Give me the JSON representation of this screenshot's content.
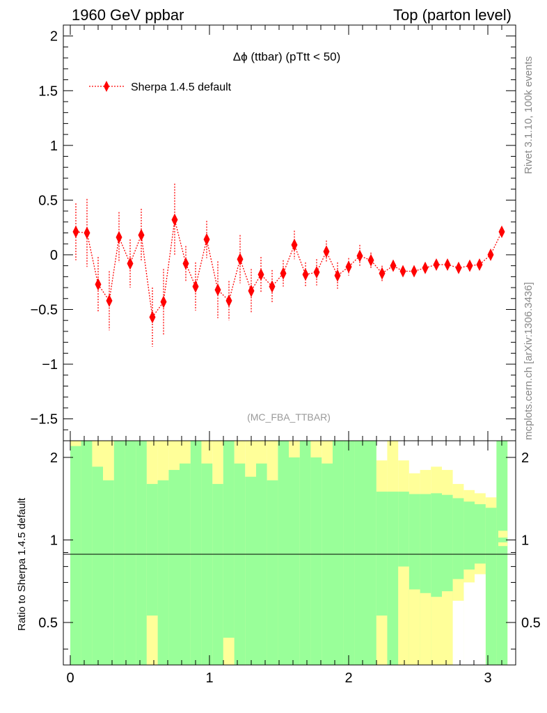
{
  "header": {
    "left": "1960 GeV ppbar",
    "right": "Top (parton level)"
  },
  "side_labels": {
    "rivet": "Rivet 3.1.10,  100k events",
    "mcplots": "mcplots.cern.ch [arXiv:1306.3436]"
  },
  "analysis_id": "(MC_FBA_TTBAR)",
  "colors": {
    "series": "#ff0000",
    "band_inner": "#99ff99",
    "band_outer": "#ffff99",
    "reference_line": "#000000"
  },
  "chart_data": [
    {
      "type": "line",
      "title": "Δϕ (ttbar) (pTtt < 50)",
      "xlabel": "",
      "ylabel": "",
      "xlim": [
        -0.05,
        3.2
      ],
      "ylim": [
        -1.7,
        2.1
      ],
      "yticks": [
        -1.5,
        -1,
        -0.5,
        0,
        0.5,
        1,
        1.5,
        2
      ],
      "ytick_labels": [
        "−1.5",
        "−1",
        "−0.5",
        "0",
        "0.5",
        "1",
        "1.5",
        "2"
      ],
      "legend_position": "top-left",
      "grid": false,
      "series": [
        {
          "name": "Sherpa 1.4.5 default",
          "marker": "diamond",
          "line_style": "dotted",
          "x": [
            0.04,
            0.12,
            0.2,
            0.28,
            0.35,
            0.43,
            0.51,
            0.59,
            0.67,
            0.75,
            0.83,
            0.9,
            0.98,
            1.06,
            1.14,
            1.22,
            1.3,
            1.37,
            1.45,
            1.53,
            1.61,
            1.69,
            1.77,
            1.84,
            1.92,
            2.0,
            2.08,
            2.16,
            2.24,
            2.32,
            2.39,
            2.47,
            2.55,
            2.63,
            2.71,
            2.79,
            2.87,
            2.94,
            3.02,
            3.1
          ],
          "y": [
            0.21,
            0.2,
            -0.27,
            -0.42,
            0.16,
            -0.08,
            0.18,
            -0.57,
            -0.43,
            0.32,
            -0.08,
            -0.29,
            0.14,
            -0.32,
            -0.42,
            -0.04,
            -0.33,
            -0.18,
            -0.29,
            -0.17,
            0.09,
            -0.18,
            -0.16,
            0.03,
            -0.19,
            -0.11,
            -0.01,
            -0.05,
            -0.17,
            -0.1,
            -0.15,
            -0.15,
            -0.12,
            -0.09,
            -0.09,
            -0.12,
            -0.1,
            -0.09,
            0.0,
            0.21
          ],
          "yerr": [
            0.26,
            0.31,
            0.25,
            0.27,
            0.23,
            0.22,
            0.24,
            0.27,
            0.3,
            0.33,
            0.16,
            0.22,
            0.17,
            0.26,
            0.18,
            0.22,
            0.2,
            0.16,
            0.15,
            0.12,
            0.13,
            0.11,
            0.12,
            0.1,
            0.12,
            0.08,
            0.1,
            0.07,
            0.07,
            0.05,
            0.04,
            0.04,
            0.03,
            0.03,
            0.03,
            0.02,
            0.02,
            0.02,
            0.02,
            0.02
          ]
        }
      ]
    },
    {
      "type": "area",
      "title": "",
      "xlabel": "",
      "ylabel": "Ratio to Sherpa 1.4.5 default",
      "xlim": [
        -0.05,
        3.2
      ],
      "ylim": [
        0.35,
        2.3
      ],
      "yscale": "log",
      "yticks": [
        0.5,
        1,
        2
      ],
      "ytick_labels": [
        "0.5",
        "1",
        "2"
      ],
      "xticks": [
        0,
        1,
        2,
        3
      ],
      "xtick_labels": [
        "0",
        "1",
        "2",
        "3"
      ],
      "reference_line": 1,
      "band_edges": [
        0.0,
        0.078,
        0.157,
        0.235,
        0.314,
        0.392,
        0.471,
        0.549,
        0.628,
        0.707,
        0.785,
        0.864,
        0.942,
        1.021,
        1.099,
        1.178,
        1.256,
        1.335,
        1.413,
        1.492,
        1.57,
        1.649,
        1.727,
        1.806,
        1.885,
        1.963,
        2.042,
        2.12,
        2.199,
        2.277,
        2.356,
        2.434,
        2.513,
        2.591,
        2.67,
        2.748,
        2.827,
        2.905,
        2.984,
        3.062,
        3.141
      ],
      "inner_band": {
        "name": "",
        "upper": [
          2.2,
          2.3,
          1.85,
          1.65,
          2.3,
          2.3,
          2.3,
          1.6,
          1.65,
          1.8,
          1.9,
          2.3,
          1.9,
          1.6,
          2.3,
          1.9,
          1.7,
          1.9,
          1.65,
          2.3,
          2.0,
          2.3,
          2.0,
          1.9,
          2.3,
          2.3,
          2.3,
          2.3,
          1.5,
          1.5,
          1.5,
          1.47,
          1.47,
          1.48,
          1.46,
          1.42,
          1.38,
          1.35,
          1.31,
          2.3
        ],
        "lower": [
          0.35,
          0.35,
          0.35,
          0.35,
          0.35,
          0.35,
          0.35,
          0.35,
          0.35,
          0.35,
          0.35,
          0.35,
          0.35,
          0.35,
          0.35,
          0.35,
          0.35,
          0.35,
          0.35,
          0.35,
          0.35,
          0.35,
          0.35,
          0.35,
          0.35,
          0.35,
          0.35,
          0.35,
          0.35,
          0.35,
          0.35,
          0.35,
          0.35,
          0.35,
          0.35,
          0.35,
          0.35,
          0.35,
          0.35,
          0.35
        ]
      },
      "outer_band": {
        "name": "",
        "upper": [
          2.3,
          2.3,
          2.3,
          2.3,
          2.3,
          2.3,
          2.3,
          2.3,
          2.3,
          2.3,
          2.3,
          2.3,
          2.3,
          2.3,
          2.3,
          2.3,
          2.3,
          2.3,
          2.3,
          2.3,
          2.3,
          2.3,
          2.3,
          2.3,
          2.3,
          2.3,
          2.3,
          2.3,
          1.95,
          2.3,
          1.95,
          1.75,
          1.8,
          1.85,
          1.8,
          1.6,
          1.52,
          1.48,
          1.43,
          2.3
        ],
        "lower": [
          0.35,
          0.35,
          0.35,
          0.35,
          0.35,
          0.35,
          0.35,
          0.35,
          0.35,
          0.35,
          0.35,
          0.35,
          0.35,
          0.35,
          0.35,
          0.35,
          0.35,
          0.35,
          0.35,
          0.35,
          0.35,
          0.35,
          0.35,
          0.35,
          0.35,
          0.35,
          0.35,
          0.35,
          0.35,
          0.35,
          0.35,
          0.35,
          0.35,
          0.35,
          0.35,
          0.35,
          0.35,
          0.35,
          0.35,
          0.35
        ]
      },
      "inner_holes": [
        {
          "bin": 7,
          "from": 0.35,
          "to": 0.53
        },
        {
          "bin": 14,
          "from": 0.35,
          "to": 0.44
        },
        {
          "bin": 28,
          "from": 0.35,
          "to": 0.53
        },
        {
          "bin": 30,
          "from": 0.35,
          "to": 0.8
        },
        {
          "bin": 31,
          "from": 0.35,
          "to": 0.66
        },
        {
          "bin": 32,
          "from": 0.35,
          "to": 0.64
        },
        {
          "bin": 33,
          "from": 0.35,
          "to": 0.62
        },
        {
          "bin": 34,
          "from": 0.35,
          "to": 0.65
        },
        {
          "bin": 35,
          "from": 0.35,
          "to": 0.72
        },
        {
          "bin": 36,
          "from": 0.35,
          "to": 0.78
        },
        {
          "bin": 37,
          "from": 0.35,
          "to": 0.82
        }
      ],
      "outer_holes": [
        {
          "bin": 35,
          "from": 0.35,
          "to": 0.6
        },
        {
          "bin": 36,
          "from": 0.35,
          "to": 0.7
        },
        {
          "bin": 37,
          "from": 0.35,
          "to": 0.75
        }
      ],
      "tail_band": {
        "from_x": 3.075,
        "to_x": 3.141,
        "inner": [
          0.98,
          1.02
        ],
        "outer": [
          0.95,
          1.08
        ]
      }
    }
  ]
}
